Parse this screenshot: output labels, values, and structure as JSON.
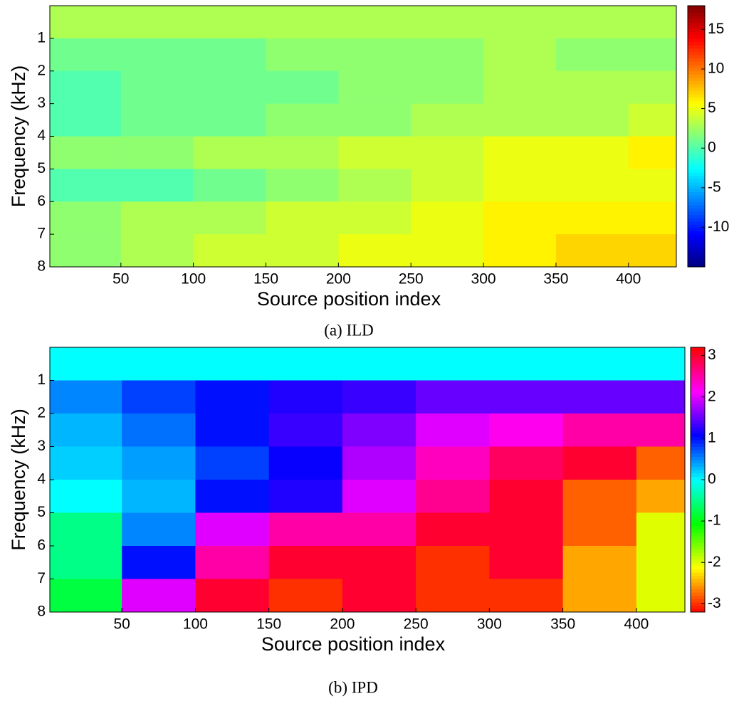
{
  "chart_data": [
    {
      "type": "heatmap",
      "caption": "(a) ILD",
      "xlabel": "Source position index",
      "ylabel": "Frequency (kHz)",
      "colormap": "jet",
      "y_reversed": true,
      "xlim": [
        1,
        433
      ],
      "xticks": [
        50,
        100,
        150,
        200,
        250,
        300,
        350,
        400
      ],
      "ylim": [
        0,
        8
      ],
      "yticks": [
        1,
        2,
        3,
        4,
        5,
        6,
        7,
        8
      ],
      "clim": [
        -15,
        18
      ],
      "cticks": [
        -10,
        -5,
        0,
        5,
        10,
        15
      ],
      "x": [
        25,
        75,
        125,
        175,
        225,
        275,
        325,
        375,
        425
      ],
      "y": [
        0.5,
        1.5,
        2.5,
        3.5,
        4.5,
        5.5,
        6.5,
        7.5
      ],
      "values": [
        [
          3,
          3,
          3,
          3,
          3,
          3,
          3,
          3,
          3
        ],
        [
          1,
          1,
          1,
          2,
          2,
          2,
          3,
          2,
          2
        ],
        [
          0,
          1,
          1,
          1,
          2,
          2,
          3,
          3,
          3
        ],
        [
          0,
          1,
          1,
          2,
          2,
          3,
          3,
          3,
          4
        ],
        [
          2,
          2,
          3,
          3,
          4,
          4,
          5,
          5,
          6
        ],
        [
          0,
          0,
          1,
          2,
          3,
          4,
          5,
          5,
          5
        ],
        [
          2,
          3,
          3,
          4,
          4,
          5,
          6,
          6,
          6
        ],
        [
          2,
          3,
          4,
          4,
          5,
          5,
          6,
          7,
          7
        ]
      ]
    },
    {
      "type": "heatmap",
      "caption": "(b) IPD",
      "xlabel": "Source position index",
      "ylabel": "Frequency (kHz)",
      "colormap": "hsv",
      "y_reversed": true,
      "xlim": [
        1,
        433
      ],
      "xticks": [
        50,
        100,
        150,
        200,
        250,
        300,
        350,
        400
      ],
      "ylim": [
        0,
        8
      ],
      "yticks": [
        1,
        2,
        3,
        4,
        5,
        6,
        7,
        8
      ],
      "clim": [
        -3.2,
        3.2
      ],
      "cticks": [
        -3,
        -2,
        -1,
        0,
        1,
        2,
        3
      ],
      "x": [
        25,
        75,
        125,
        175,
        225,
        275,
        325,
        375,
        425
      ],
      "y": [
        0.5,
        1.5,
        2.5,
        3.5,
        4.5,
        5.5,
        6.5,
        7.5
      ],
      "values": [
        [
          0,
          0,
          0,
          0,
          0,
          0,
          0,
          0,
          0
        ],
        [
          0.5,
          0.8,
          1,
          1.2,
          1.3,
          1.5,
          1.5,
          1.5,
          1.5
        ],
        [
          0.3,
          0.6,
          1,
          1.3,
          1.6,
          2,
          2.2,
          2.5,
          2.5
        ],
        [
          0.2,
          0.4,
          0.8,
          1.1,
          1.8,
          2.4,
          2.8,
          3,
          -2.8
        ],
        [
          0,
          0.3,
          1,
          1.2,
          2,
          2.6,
          3,
          -2.8,
          -2.5
        ],
        [
          -0.5,
          0.5,
          2,
          2.5,
          2.5,
          3,
          3,
          -2.8,
          -2
        ],
        [
          -0.5,
          1,
          2.5,
          3,
          3,
          -3,
          3,
          -2.5,
          -2
        ],
        [
          -0.8,
          2,
          3,
          -3,
          3,
          -3,
          -3,
          -2.5,
          -2
        ]
      ]
    }
  ]
}
